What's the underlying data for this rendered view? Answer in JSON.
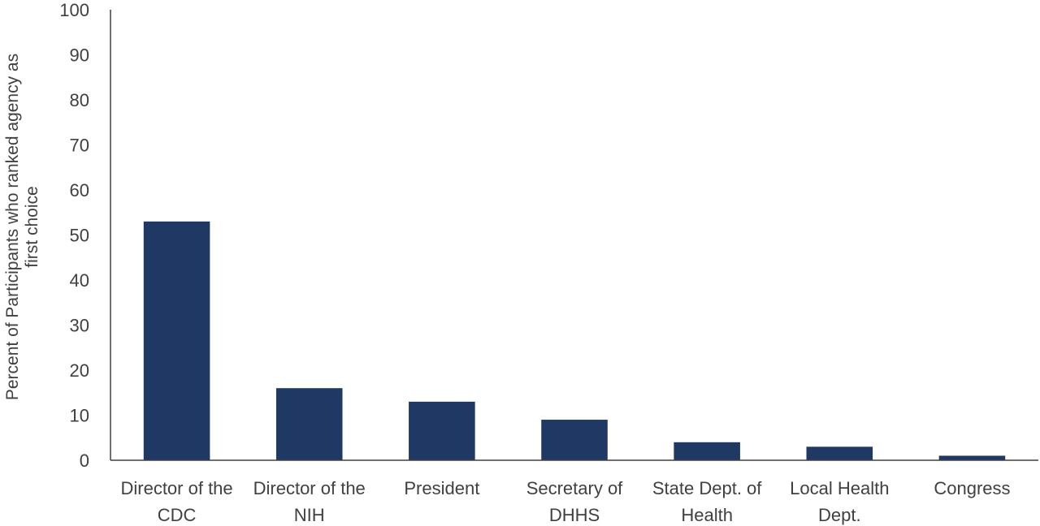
{
  "chart_data": {
    "type": "bar",
    "title": "",
    "xlabel": "",
    "ylabel_lines": [
      "Percent of Participants who ranked agency as",
      "first choice"
    ],
    "ylim": [
      0,
      100
    ],
    "yticks": [
      0,
      10,
      20,
      30,
      40,
      50,
      60,
      70,
      80,
      90,
      100
    ],
    "grid": false,
    "legend": "none",
    "categories": [
      [
        "Director of the",
        "CDC"
      ],
      [
        "Director of the",
        "NIH"
      ],
      [
        "President"
      ],
      [
        "Secretary of",
        "DHHS"
      ],
      [
        "State Dept. of",
        "Health"
      ],
      [
        "Local Health",
        "Dept."
      ],
      [
        "Congress"
      ]
    ],
    "values": [
      53,
      16,
      13,
      9,
      4,
      3,
      1
    ],
    "bar_color": "#203864",
    "axis_color": "#404040"
  }
}
